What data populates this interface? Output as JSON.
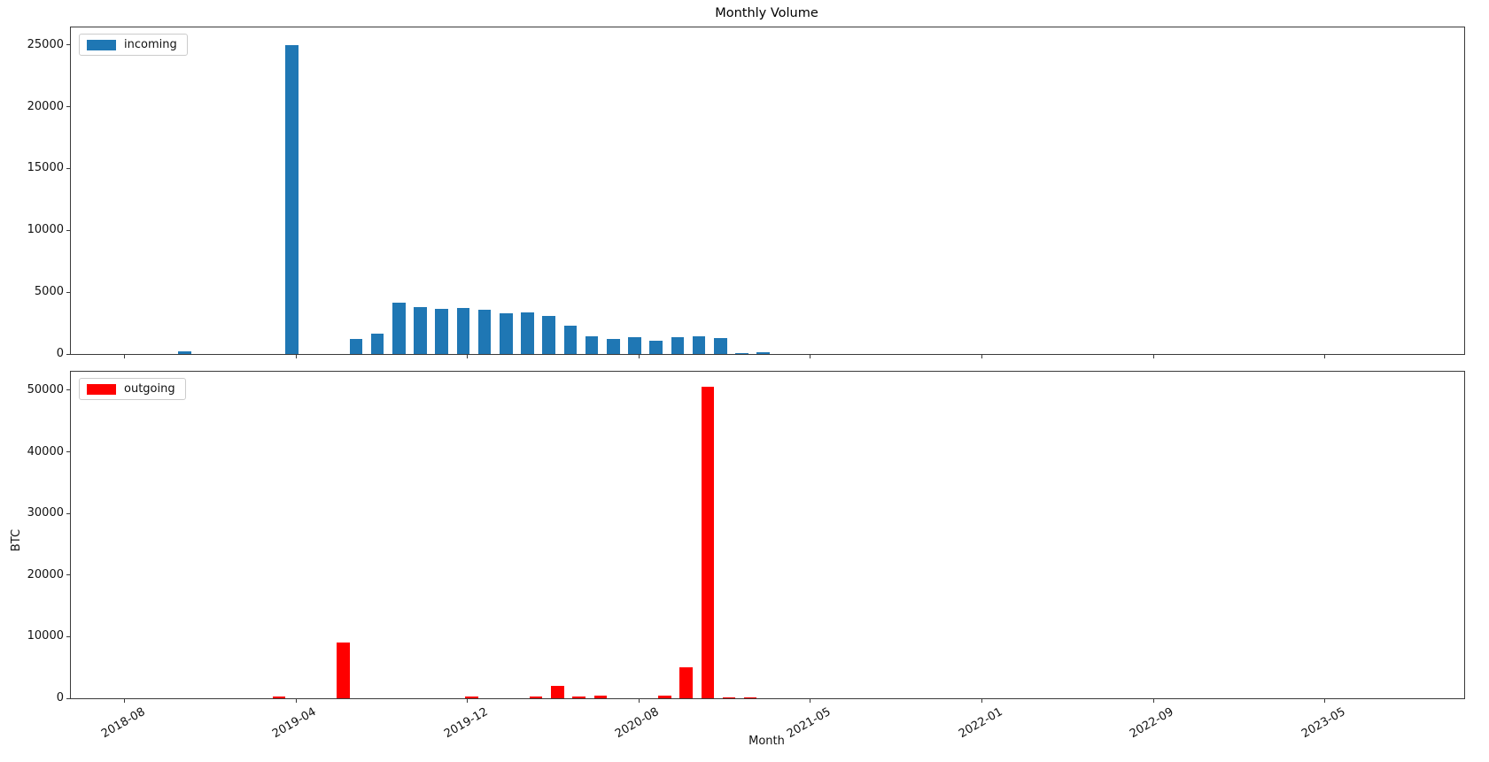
{
  "title": "Monthly Volume",
  "x_axis": {
    "label": "Month",
    "n_categories": 65,
    "tick_positions": [
      2,
      10,
      18,
      26,
      34,
      42,
      50,
      58
    ],
    "tick_labels": [
      "2018-08",
      "2019-04",
      "2019-12",
      "2020-08",
      "2021-05",
      "2022-01",
      "2022-09",
      "2023-05"
    ],
    "tick_rotation_deg": 30
  },
  "colors": {
    "incoming": "#1f77b4",
    "outgoing": "#ff0000",
    "spine": "#3a3a3a",
    "background": "#ffffff"
  },
  "chart_data": [
    {
      "type": "bar",
      "name": "incoming",
      "legend_label": "incoming",
      "color": "#1f77b4",
      "ylim": [
        0,
        26400
      ],
      "y_ticks": [
        0,
        5000,
        10000,
        15000,
        20000,
        25000
      ],
      "grid": false,
      "legend_position": "upper left",
      "points": [
        {
          "month": "2018-11",
          "cat": 5,
          "value": 250
        },
        {
          "month": "2019-04",
          "cat": 10,
          "value": 25000
        },
        {
          "month": "2019-07",
          "cat": 13,
          "value": 1200
        },
        {
          "month": "2019-08",
          "cat": 14,
          "value": 1650
        },
        {
          "month": "2019-09",
          "cat": 15,
          "value": 4150
        },
        {
          "month": "2019-10",
          "cat": 16,
          "value": 3800
        },
        {
          "month": "2019-11",
          "cat": 17,
          "value": 3650
        },
        {
          "month": "2019-12",
          "cat": 18,
          "value": 3750
        },
        {
          "month": "2020-01",
          "cat": 19,
          "value": 3600
        },
        {
          "month": "2020-02",
          "cat": 20,
          "value": 3300
        },
        {
          "month": "2020-03",
          "cat": 21,
          "value": 3400
        },
        {
          "month": "2020-04",
          "cat": 22,
          "value": 3050
        },
        {
          "month": "2020-05",
          "cat": 23,
          "value": 2300
        },
        {
          "month": "2020-06",
          "cat": 24,
          "value": 1400
        },
        {
          "month": "2020-07",
          "cat": 25,
          "value": 1200
        },
        {
          "month": "2020-08",
          "cat": 26,
          "value": 1350
        },
        {
          "month": "2020-09",
          "cat": 27,
          "value": 1050
        },
        {
          "month": "2020-10",
          "cat": 28,
          "value": 1350
        },
        {
          "month": "2020-11",
          "cat": 29,
          "value": 1400
        },
        {
          "month": "2020-12",
          "cat": 30,
          "value": 1300
        },
        {
          "month": "2021-01",
          "cat": 31,
          "value": 100
        },
        {
          "month": "2021-02",
          "cat": 32,
          "value": 150
        }
      ]
    },
    {
      "type": "bar",
      "name": "outgoing",
      "legend_label": "outgoing",
      "color": "#ff0000",
      "ylabel": "BTC",
      "ylim": [
        0,
        53000
      ],
      "y_ticks": [
        0,
        10000,
        20000,
        30000,
        40000,
        50000
      ],
      "grid": false,
      "legend_position": "upper left",
      "points": [
        {
          "month": "2019-03",
          "cat": 9,
          "value": 250
        },
        {
          "month": "2019-06",
          "cat": 12,
          "value": 9000
        },
        {
          "month": "2019-12",
          "cat": 18,
          "value": 300
        },
        {
          "month": "2020-03",
          "cat": 21,
          "value": 250
        },
        {
          "month": "2020-04",
          "cat": 22,
          "value": 2000
        },
        {
          "month": "2020-05",
          "cat": 23,
          "value": 250
        },
        {
          "month": "2020-06",
          "cat": 24,
          "value": 500
        },
        {
          "month": "2020-09",
          "cat": 27,
          "value": 400
        },
        {
          "month": "2020-10",
          "cat": 28,
          "value": 5000
        },
        {
          "month": "2020-11",
          "cat": 29,
          "value": 50600
        },
        {
          "month": "2020-12",
          "cat": 30,
          "value": 150
        },
        {
          "month": "2021-01",
          "cat": 31,
          "value": 150
        }
      ]
    }
  ]
}
